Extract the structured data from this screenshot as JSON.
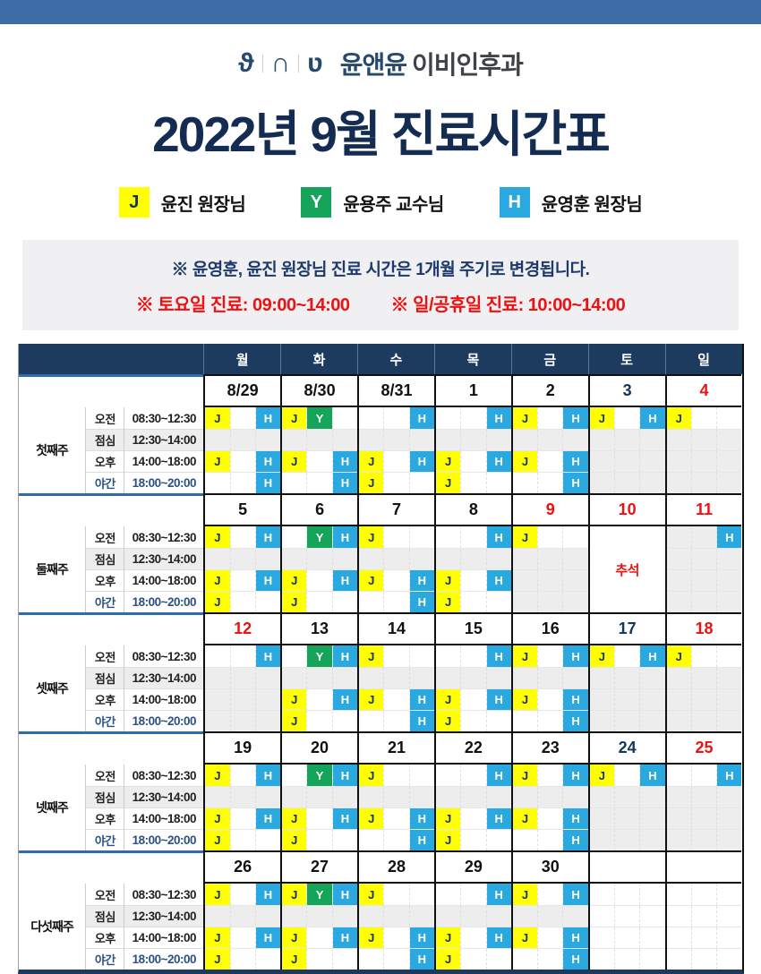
{
  "colors": {
    "topbar": "#3b6ca6",
    "title_navy": "#152c52",
    "header_bg": "#1d3a5f",
    "notice_navy": "#1d3a6b",
    "red": "#ee1111",
    "date_navy": "#16365c",
    "gray_cell": "#ededed",
    "night_navy": "#2c5183"
  },
  "logo": {
    "glyphs": [
      "ϑ",
      "∩",
      "ʋ"
    ],
    "clinic_name_1": "윤앤윤",
    "clinic_name_2": "이비인후과"
  },
  "title": "2022년 9월 진료시간표",
  "legend": {
    "items": [
      {
        "key": "J",
        "label": "윤진 원장님",
        "bg": "#ffff00",
        "fg": "#17335f"
      },
      {
        "key": "Y",
        "label": "윤용주 교수님",
        "bg": "#14a45a",
        "fg": "#ffffff"
      },
      {
        "key": "H",
        "label": "윤영훈 원장님",
        "bg": "#29a9e0",
        "fg": "#ffffff"
      }
    ]
  },
  "notice": {
    "line1": "※ 윤영훈, 윤진 원장님 진료 시간은 1개월 주기로 변경됩니다.",
    "line2a": "※ 토요일 진료: 09:00~14:00",
    "line2b": "※ 일/공휴일 진료: 10:00~14:00"
  },
  "table": {
    "day_headers": [
      "월",
      "화",
      "수",
      "목",
      "금",
      "토",
      "일"
    ],
    "periods": [
      {
        "label": "오전",
        "time": "08:30~12:30",
        "style": "normal"
      },
      {
        "label": "점심",
        "time": "12:30~14:00",
        "style": "lunch"
      },
      {
        "label": "오후",
        "time": "14:00~18:00",
        "style": "normal"
      },
      {
        "label": "야간",
        "time": "18:00~20:00",
        "style": "night"
      }
    ],
    "badge_slots": {
      "J": 0,
      "Y": 1,
      "H": 2
    },
    "weeks": [
      {
        "label": "첫째주",
        "dates": [
          {
            "t": "8/29",
            "c": "k"
          },
          {
            "t": "8/30",
            "c": "k"
          },
          {
            "t": "8/31",
            "c": "k"
          },
          {
            "t": "1",
            "c": "k"
          },
          {
            "t": "2",
            "c": "k"
          },
          {
            "t": "3",
            "c": "n"
          },
          {
            "t": "4",
            "c": "r"
          }
        ],
        "rows": {
          "am": [
            {
              "b": [
                "J",
                "H"
              ]
            },
            {
              "b": [
                "J",
                "Y"
              ]
            },
            {
              "b": [
                "H"
              ]
            },
            {
              "b": [
                "H"
              ]
            },
            {
              "b": [
                "J",
                "H"
              ]
            },
            {
              "b": [
                "J",
                "H"
              ]
            },
            {
              "b": [
                "J"
              ]
            }
          ],
          "lunch": [
            {
              "bg": "g"
            },
            {
              "bg": "g"
            },
            {
              "bg": "g"
            },
            {
              "bg": "g"
            },
            {
              "bg": "g"
            },
            {
              "bg": "g"
            },
            {
              "bg": "g"
            }
          ],
          "pm": [
            {
              "b": [
                "J",
                "H"
              ]
            },
            {
              "b": [
                "J",
                "H"
              ]
            },
            {
              "b": [
                "J",
                "H"
              ]
            },
            {
              "b": [
                "J",
                "H"
              ]
            },
            {
              "b": [
                "J",
                "H"
              ]
            },
            {
              "bg": "g"
            },
            {
              "bg": "g"
            }
          ],
          "night": [
            {
              "b": [
                "H"
              ]
            },
            {
              "b": [
                "H"
              ]
            },
            {
              "b": [
                "J"
              ]
            },
            {
              "b": [
                "J"
              ]
            },
            {
              "b": [
                "H"
              ]
            },
            {
              "bg": "g"
            },
            {
              "bg": "g"
            }
          ]
        }
      },
      {
        "label": "둘째주",
        "dates": [
          {
            "t": "5",
            "c": "k"
          },
          {
            "t": "6",
            "c": "k"
          },
          {
            "t": "7",
            "c": "k"
          },
          {
            "t": "8",
            "c": "k"
          },
          {
            "t": "9",
            "c": "r"
          },
          {
            "t": "10",
            "c": "r"
          },
          {
            "t": "11",
            "c": "r"
          }
        ],
        "holiday": {
          "col": 5,
          "text": "추석"
        },
        "rows": {
          "am": [
            {
              "b": [
                "J",
                "H"
              ]
            },
            {
              "b": [
                "Y",
                "H"
              ]
            },
            {
              "b": [
                "J"
              ]
            },
            {
              "b": [
                "H"
              ]
            },
            {
              "b": [
                "J"
              ]
            },
            null,
            {
              "b": [
                "H"
              ],
              "bg": "g"
            }
          ],
          "lunch": [
            {
              "bg": "g"
            },
            {
              "bg": "g"
            },
            {
              "bg": "g"
            },
            {
              "bg": "g"
            },
            {
              "bg": "g"
            },
            null,
            {
              "bg": "g"
            }
          ],
          "pm": [
            {
              "b": [
                "J",
                "H"
              ]
            },
            {
              "b": [
                "J",
                "H"
              ]
            },
            {
              "b": [
                "J",
                "H"
              ]
            },
            {
              "b": [
                "J",
                "H"
              ]
            },
            {
              "bg": "g"
            },
            null,
            {
              "bg": "g"
            }
          ],
          "night": [
            {
              "b": [
                "J"
              ]
            },
            {
              "b": [
                "J"
              ]
            },
            {
              "b": [
                "H"
              ]
            },
            {
              "b": [
                "J"
              ]
            },
            {
              "bg": "g"
            },
            null,
            {
              "bg": "g"
            }
          ]
        }
      },
      {
        "label": "셋째주",
        "dates": [
          {
            "t": "12",
            "c": "r"
          },
          {
            "t": "13",
            "c": "k"
          },
          {
            "t": "14",
            "c": "k"
          },
          {
            "t": "15",
            "c": "k"
          },
          {
            "t": "16",
            "c": "k"
          },
          {
            "t": "17",
            "c": "n"
          },
          {
            "t": "18",
            "c": "r"
          }
        ],
        "rows": {
          "am": [
            {
              "b": [
                "H"
              ]
            },
            {
              "b": [
                "Y",
                "H"
              ]
            },
            {
              "b": [
                "J"
              ]
            },
            {
              "b": [
                "H"
              ]
            },
            {
              "b": [
                "J",
                "H"
              ]
            },
            {
              "b": [
                "J",
                "H"
              ]
            },
            {
              "b": [
                "J"
              ]
            }
          ],
          "lunch": [
            {
              "bg": "g"
            },
            {
              "bg": "g"
            },
            {
              "bg": "g"
            },
            {
              "bg": "g"
            },
            {
              "bg": "g"
            },
            {
              "bg": "g"
            },
            {
              "bg": "g"
            }
          ],
          "pm": [
            {
              "bg": "g"
            },
            {
              "b": [
                "J",
                "H"
              ]
            },
            {
              "b": [
                "J",
                "H"
              ]
            },
            {
              "b": [
                "J",
                "H"
              ]
            },
            {
              "b": [
                "J",
                "H"
              ]
            },
            {
              "bg": "g"
            },
            {
              "bg": "g"
            }
          ],
          "night": [
            {
              "bg": "g"
            },
            {
              "b": [
                "J"
              ]
            },
            {
              "b": [
                "H"
              ]
            },
            {
              "b": [
                "J"
              ]
            },
            {
              "b": [
                "H"
              ]
            },
            {
              "bg": "g"
            },
            {
              "bg": "g"
            }
          ]
        }
      },
      {
        "label": "넷째주",
        "dates": [
          {
            "t": "19",
            "c": "k"
          },
          {
            "t": "20",
            "c": "k"
          },
          {
            "t": "21",
            "c": "k"
          },
          {
            "t": "22",
            "c": "k"
          },
          {
            "t": "23",
            "c": "k"
          },
          {
            "t": "24",
            "c": "n"
          },
          {
            "t": "25",
            "c": "r"
          }
        ],
        "rows": {
          "am": [
            {
              "b": [
                "J",
                "H"
              ]
            },
            {
              "b": [
                "Y",
                "H"
              ]
            },
            {
              "b": [
                "J"
              ]
            },
            {
              "b": [
                "H"
              ]
            },
            {
              "b": [
                "J",
                "H"
              ]
            },
            {
              "b": [
                "J",
                "H"
              ]
            },
            {
              "b": [
                "H"
              ]
            }
          ],
          "lunch": [
            {
              "bg": "g"
            },
            {
              "bg": "g"
            },
            {
              "bg": "g"
            },
            {
              "bg": "g"
            },
            {
              "bg": "g"
            },
            {
              "bg": "g"
            },
            {
              "bg": "g"
            }
          ],
          "pm": [
            {
              "b": [
                "J",
                "H"
              ]
            },
            {
              "b": [
                "J",
                "H"
              ]
            },
            {
              "b": [
                "J",
                "H"
              ]
            },
            {
              "b": [
                "J",
                "H"
              ]
            },
            {
              "b": [
                "J",
                "H"
              ]
            },
            {
              "bg": "g"
            },
            {
              "bg": "g"
            }
          ],
          "night": [
            {
              "b": [
                "J"
              ]
            },
            {
              "b": [
                "J"
              ]
            },
            {
              "b": [
                "H"
              ]
            },
            {
              "b": [
                "J"
              ]
            },
            {
              "b": [
                "H"
              ]
            },
            {
              "bg": "g"
            },
            {
              "bg": "g"
            }
          ]
        }
      },
      {
        "label": "다섯째주",
        "dates": [
          {
            "t": "26",
            "c": "k"
          },
          {
            "t": "27",
            "c": "k"
          },
          {
            "t": "28",
            "c": "k"
          },
          {
            "t": "29",
            "c": "k"
          },
          {
            "t": "30",
            "c": "k"
          },
          {
            "t": "",
            "c": "k"
          },
          {
            "t": "",
            "c": "k"
          }
        ],
        "rows": {
          "am": [
            {
              "b": [
                "J",
                "H"
              ]
            },
            {
              "b": [
                "J",
                "Y",
                "H"
              ]
            },
            {
              "b": [
                "J"
              ]
            },
            {
              "b": [
                "H"
              ]
            },
            {
              "b": [
                "J",
                "H"
              ]
            },
            null,
            null
          ],
          "lunch": [
            {
              "bg": "g"
            },
            {
              "bg": "g"
            },
            {
              "bg": "g"
            },
            {
              "bg": "g"
            },
            {
              "bg": "g"
            },
            null,
            null
          ],
          "pm": [
            {
              "b": [
                "J",
                "H"
              ]
            },
            {
              "b": [
                "J",
                "H"
              ]
            },
            {
              "b": [
                "J",
                "H"
              ]
            },
            {
              "b": [
                "J",
                "H"
              ]
            },
            {
              "b": [
                "J",
                "H"
              ]
            },
            null,
            null
          ],
          "night": [
            {
              "b": [
                "J"
              ]
            },
            {
              "b": [
                "J"
              ]
            },
            {
              "b": [
                "H"
              ]
            },
            {
              "b": [
                "J"
              ]
            },
            {
              "b": [
                "H"
              ]
            },
            null,
            null
          ]
        }
      }
    ]
  }
}
